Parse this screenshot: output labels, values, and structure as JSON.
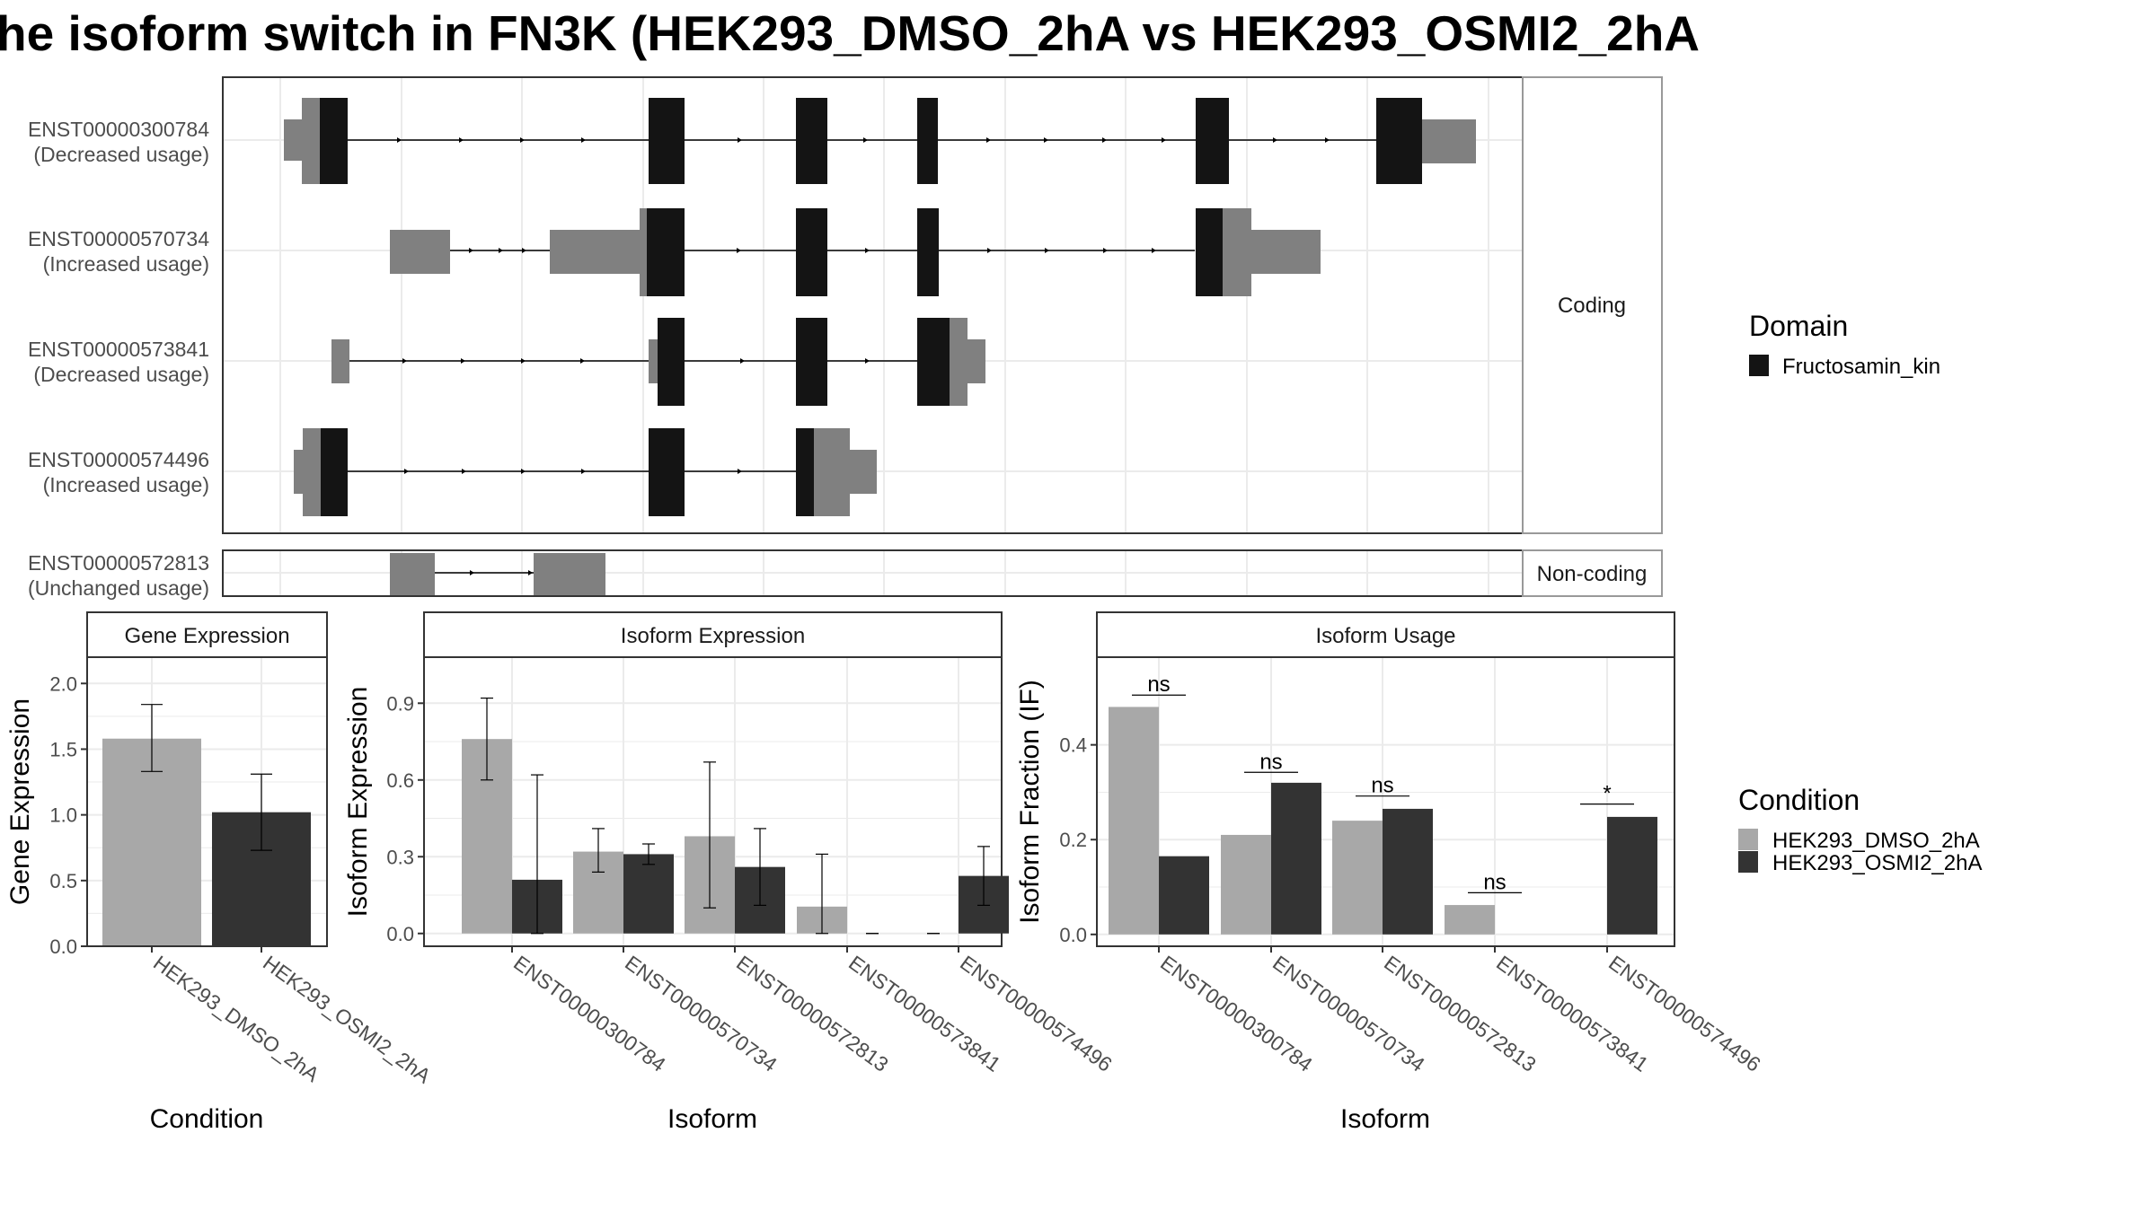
{
  "title": "he isoform switch in FN3K (HEK293_DMSO_2hA vs HEK293_OSMI2_2hA",
  "colors": {
    "domain": "#141414",
    "utr": "#808080",
    "dmso": "#A8A8A8",
    "osmi": "#333333",
    "frame": "#333333",
    "grid": "#EBEBEB",
    "strip_fill": "#FFFFFF",
    "strip_border": "#999999"
  },
  "transcripts": {
    "facets": {
      "coding": "Coding",
      "noncoding": "Non-coding"
    },
    "coding": [
      {
        "id": "ENST00000300784",
        "usage": "(Decreased usage)"
      },
      {
        "id": "ENST00000570734",
        "usage": "(Increased usage)"
      },
      {
        "id": "ENST00000573841",
        "usage": "(Decreased usage)"
      },
      {
        "id": "ENST00000574496",
        "usage": "(Increased usage)"
      }
    ],
    "noncoding": [
      {
        "id": "ENST00000572813",
        "usage": "(Unchanged usage)"
      }
    ]
  },
  "legends": {
    "domain": {
      "title": "Domain",
      "items": [
        {
          "label": "Fructosamin_kin",
          "color": "#141414"
        }
      ]
    },
    "condition": {
      "title": "Condition",
      "items": [
        {
          "label": "HEK293_DMSO_2hA",
          "color": "#A8A8A8"
        },
        {
          "label": "HEK293_OSMI2_2hA",
          "color": "#333333"
        }
      ]
    }
  },
  "chart_data": [
    {
      "type": "bar",
      "title": "Gene Expression",
      "xlabel": "Condition",
      "ylabel": "Gene Expression",
      "categories": [
        "HEK293_DMSO_2hA",
        "HEK293_OSMI2_2hA"
      ],
      "values": [
        1.58,
        1.02
      ],
      "error_low": [
        1.33,
        0.73
      ],
      "error_high": [
        1.84,
        1.31
      ],
      "ylim": [
        0,
        2.2
      ],
      "yticks": [
        0.0,
        0.5,
        1.0,
        1.5,
        2.0
      ],
      "ytick_labels": [
        "0.0",
        "0.5",
        "1.0",
        "1.5",
        "2.0"
      ],
      "grid": true
    },
    {
      "type": "bar",
      "title": "Isoform Expression",
      "xlabel": "Isoform",
      "ylabel": "Isoform Expression",
      "categories": [
        "ENST00000300784",
        "ENST00000570734",
        "ENST00000572813",
        "ENST00000573841",
        "ENST00000574496"
      ],
      "series": [
        {
          "name": "HEK293_DMSO_2hA",
          "values": [
            0.76,
            0.32,
            0.38,
            0.105,
            0.0
          ],
          "error_low": [
            0.6,
            0.24,
            0.1,
            0.0,
            0.0
          ],
          "error_high": [
            0.92,
            0.41,
            0.67,
            0.31,
            0.0
          ]
        },
        {
          "name": "HEK293_OSMI2_2hA",
          "values": [
            0.21,
            0.31,
            0.26,
            0.0,
            0.225
          ],
          "error_low": [
            0.0,
            0.27,
            0.11,
            0.0,
            0.11
          ],
          "error_high": [
            0.62,
            0.35,
            0.41,
            0.0,
            0.34
          ]
        }
      ],
      "ylim": [
        -0.05,
        1.08
      ],
      "yticks": [
        0.0,
        0.3,
        0.6,
        0.9
      ],
      "ytick_labels": [
        "0.0",
        "0.3",
        "0.6",
        "0.9"
      ],
      "grid": true
    },
    {
      "type": "bar",
      "title": "Isoform Usage",
      "xlabel": "Isoform",
      "ylabel": "Isoform Fraction (IF)",
      "categories": [
        "ENST00000300784",
        "ENST00000570734",
        "ENST00000572813",
        "ENST00000573841",
        "ENST00000574496"
      ],
      "series": [
        {
          "name": "HEK293_DMSO_2hA",
          "values": [
            0.48,
            0.21,
            0.24,
            0.062,
            0.0
          ]
        },
        {
          "name": "HEK293_OSMI2_2hA",
          "values": [
            0.165,
            0.32,
            0.265,
            0.0,
            0.248
          ]
        }
      ],
      "significance": [
        "ns",
        "ns",
        "ns",
        "ns",
        "*"
      ],
      "significance_level": [
        0.505,
        0.342,
        0.292,
        0.088,
        0.275
      ],
      "ylim": [
        -0.025,
        0.585
      ],
      "yticks": [
        0.0,
        0.2,
        0.4
      ],
      "ytick_labels": [
        "0.0",
        "0.2",
        "0.4"
      ],
      "grid": true
    }
  ]
}
